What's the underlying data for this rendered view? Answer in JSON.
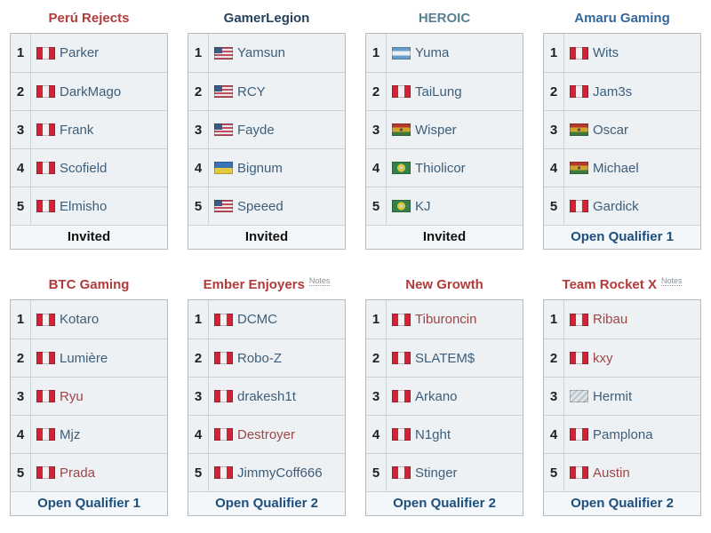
{
  "colors": {
    "card_bg": "#edf1f4",
    "footer_bg": "#f4f7f9",
    "card_border": "#b3bac0",
    "row_separator": "#ccd2d6",
    "red_link": "#b23b3b",
    "blue_link": "#1d4f7c",
    "player_blue": "#3d5e7a",
    "player_red": "#9c4646",
    "notes_gray": "#8a9095"
  },
  "teams": [
    {
      "title": "Perú Rejects",
      "title_link": "red",
      "footer": "Invited",
      "footer_link": "none",
      "players": [
        {
          "slot": "1",
          "name": "Parker",
          "flag": "pe",
          "flag_name": "peru-flag-icon",
          "link": "blue"
        },
        {
          "slot": "2",
          "name": "DarkMago",
          "flag": "pe",
          "flag_name": "peru-flag-icon",
          "link": "blue"
        },
        {
          "slot": "3",
          "name": "Frank",
          "flag": "pe",
          "flag_name": "peru-flag-icon",
          "link": "blue"
        },
        {
          "slot": "4",
          "name": "Scofield",
          "flag": "pe",
          "flag_name": "peru-flag-icon",
          "link": "blue"
        },
        {
          "slot": "5",
          "name": "Elmisho",
          "flag": "pe",
          "flag_name": "peru-flag-icon",
          "link": "blue"
        }
      ]
    },
    {
      "title": "GamerLegion",
      "title_link": "navy",
      "footer": "Invited",
      "footer_link": "none",
      "players": [
        {
          "slot": "1",
          "name": "Yamsun",
          "flag": "us",
          "flag_name": "usa-flag-icon",
          "link": "blue"
        },
        {
          "slot": "2",
          "name": "RCY",
          "flag": "us",
          "flag_name": "usa-flag-icon",
          "link": "blue"
        },
        {
          "slot": "3",
          "name": "Fayde",
          "flag": "us",
          "flag_name": "usa-flag-icon",
          "link": "blue"
        },
        {
          "slot": "4",
          "name": "Bignum",
          "flag": "ua",
          "flag_name": "ukraine-flag-icon",
          "link": "blue"
        },
        {
          "slot": "5",
          "name": "Speeed",
          "flag": "us",
          "flag_name": "usa-flag-icon",
          "link": "blue"
        }
      ]
    },
    {
      "title": "HEROIC",
      "title_link": "steel",
      "footer": "Invited",
      "footer_link": "none",
      "players": [
        {
          "slot": "1",
          "name": "Yuma",
          "flag": "ar",
          "flag_name": "argentina-flag-icon",
          "link": "blue"
        },
        {
          "slot": "2",
          "name": "TaiLung",
          "flag": "pe",
          "flag_name": "peru-flag-icon",
          "link": "blue"
        },
        {
          "slot": "3",
          "name": "Wisper",
          "flag": "bo",
          "flag_name": "bolivia-flag-icon",
          "link": "blue"
        },
        {
          "slot": "4",
          "name": "Thiolicor",
          "flag": "br",
          "flag_name": "brazil-flag-icon",
          "link": "blue"
        },
        {
          "slot": "5",
          "name": "KJ",
          "flag": "br",
          "flag_name": "brazil-flag-icon",
          "link": "blue"
        }
      ]
    },
    {
      "title": "Amaru Gaming",
      "title_link": "blue",
      "footer": "Open Qualifier 1",
      "footer_link": "blue",
      "players": [
        {
          "slot": "1",
          "name": "Wits",
          "flag": "pe",
          "flag_name": "peru-flag-icon",
          "link": "blue"
        },
        {
          "slot": "2",
          "name": "Jam3s",
          "flag": "pe",
          "flag_name": "peru-flag-icon",
          "link": "blue"
        },
        {
          "slot": "3",
          "name": "Oscar",
          "flag": "bo",
          "flag_name": "bolivia-flag-icon",
          "link": "blue"
        },
        {
          "slot": "4",
          "name": "Michael",
          "flag": "bo",
          "flag_name": "bolivia-flag-icon",
          "link": "blue"
        },
        {
          "slot": "5",
          "name": "Gardick",
          "flag": "pe",
          "flag_name": "peru-flag-icon",
          "link": "blue"
        }
      ]
    },
    {
      "title": "BTC Gaming",
      "title_link": "red",
      "footer": "Open Qualifier 1",
      "footer_link": "blue",
      "players": [
        {
          "slot": "1",
          "name": "Kotaro",
          "flag": "pe",
          "flag_name": "peru-flag-icon",
          "link": "blue"
        },
        {
          "slot": "2",
          "name": "Lumière",
          "flag": "pe",
          "flag_name": "peru-flag-icon",
          "link": "blue"
        },
        {
          "slot": "3",
          "name": "Ryu",
          "flag": "pe",
          "flag_name": "peru-flag-icon",
          "link": "red"
        },
        {
          "slot": "4",
          "name": "Mjz",
          "flag": "pe",
          "flag_name": "peru-flag-icon",
          "link": "blue"
        },
        {
          "slot": "5",
          "name": "Prada",
          "flag": "pe",
          "flag_name": "peru-flag-icon",
          "link": "red"
        }
      ]
    },
    {
      "title": "Ember Enjoyers",
      "title_link": "red",
      "notes": "Notes",
      "footer": "Open Qualifier 2",
      "footer_link": "blue",
      "players": [
        {
          "slot": "1",
          "name": "DCMC",
          "flag": "pe",
          "flag_name": "peru-flag-icon",
          "link": "blue"
        },
        {
          "slot": "2",
          "name": "Robo-Z",
          "flag": "pe",
          "flag_name": "peru-flag-icon",
          "link": "blue"
        },
        {
          "slot": "3",
          "name": "drakesh1t",
          "flag": "pe",
          "flag_name": "peru-flag-icon",
          "link": "blue"
        },
        {
          "slot": "4",
          "name": "Destroyer",
          "flag": "pe",
          "flag_name": "peru-flag-icon",
          "link": "red"
        },
        {
          "slot": "5",
          "name": "JimmyCoff666",
          "flag": "pe",
          "flag_name": "peru-flag-icon",
          "link": "blue"
        }
      ]
    },
    {
      "title": "New Growth",
      "title_link": "red",
      "footer": "Open Qualifier 2",
      "footer_link": "blue",
      "players": [
        {
          "slot": "1",
          "name": "Tiburoncin",
          "flag": "pe",
          "flag_name": "peru-flag-icon",
          "link": "red"
        },
        {
          "slot": "2",
          "name": "SLATEM$",
          "flag": "pe",
          "flag_name": "peru-flag-icon",
          "link": "blue"
        },
        {
          "slot": "3",
          "name": "Arkano",
          "flag": "pe",
          "flag_name": "peru-flag-icon",
          "link": "blue"
        },
        {
          "slot": "4",
          "name": "N1ght",
          "flag": "pe",
          "flag_name": "peru-flag-icon",
          "link": "blue"
        },
        {
          "slot": "5",
          "name": "Stinger",
          "flag": "pe",
          "flag_name": "peru-flag-icon",
          "link": "blue"
        }
      ]
    },
    {
      "title": "Team Rocket X",
      "title_link": "red",
      "notes": "Notes",
      "footer": "Open Qualifier 2",
      "footer_link": "blue",
      "players": [
        {
          "slot": "1",
          "name": "Ribau",
          "flag": "pe",
          "flag_name": "peru-flag-icon",
          "link": "red"
        },
        {
          "slot": "2",
          "name": "kxy",
          "flag": "pe",
          "flag_name": "peru-flag-icon",
          "link": "red"
        },
        {
          "slot": "3",
          "name": "Hermit",
          "flag": "unknown",
          "flag_name": "unknown-flag-icon",
          "link": "blue"
        },
        {
          "slot": "4",
          "name": "Pamplona",
          "flag": "pe",
          "flag_name": "peru-flag-icon",
          "link": "blue"
        },
        {
          "slot": "5",
          "name": "Austin",
          "flag": "pe",
          "flag_name": "peru-flag-icon",
          "link": "red"
        }
      ]
    }
  ]
}
